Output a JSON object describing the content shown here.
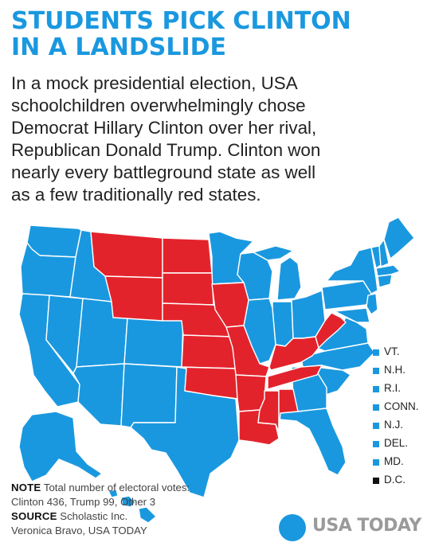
{
  "headline": {
    "line1": "STUDENTS PICK CLINTON",
    "line2": "IN A LANDSLIDE"
  },
  "dek": {
    "lines": [
      "In a mock presidential election, USA",
      "schoolchildren overwhelmingly chose",
      "Democrat Hillary Clinton over her rival,",
      "Republican Donald Trump. Clinton won",
      "nearly every battleground state as well",
      "as a few traditionally red states."
    ]
  },
  "colors": {
    "clinton": "#1a98df",
    "trump": "#e3232c",
    "other": "#111111",
    "headline": "#1a98df"
  },
  "map": {
    "trump_states": [
      "Montana",
      "North Dakota",
      "South Dakota",
      "Wyoming",
      "Nebraska",
      "Kansas",
      "Oklahoma",
      "Iowa",
      "Missouri",
      "Arkansas",
      "Louisiana",
      "Mississippi",
      "Alabama",
      "Tennessee",
      "Kentucky",
      "West Virginia"
    ],
    "clinton_states": [
      "Washington",
      "Oregon",
      "California",
      "Nevada",
      "Idaho",
      "Utah",
      "Arizona",
      "Colorado",
      "New Mexico",
      "Texas",
      "Minnesota",
      "Wisconsin",
      "Illinois",
      "Michigan",
      "Indiana",
      "Ohio",
      "Pennsylvania",
      "New York",
      "Maine",
      "Vermont",
      "New Hampshire",
      "Massachusetts",
      "Rhode Island",
      "Connecticut",
      "New Jersey",
      "Delaware",
      "Maryland",
      "Virginia",
      "North Carolina",
      "South Carolina",
      "Georgia",
      "Florida",
      "Alaska",
      "Hawaii"
    ],
    "other": [
      "D.C."
    ]
  },
  "legend": [
    {
      "label": "VT.",
      "party": "clinton"
    },
    {
      "label": "N.H.",
      "party": "clinton"
    },
    {
      "label": "R.I.",
      "party": "clinton"
    },
    {
      "label": "CONN.",
      "party": "clinton"
    },
    {
      "label": "N.J.",
      "party": "clinton"
    },
    {
      "label": "DEL.",
      "party": "clinton"
    },
    {
      "label": "MD.",
      "party": "clinton"
    },
    {
      "label": "D.C.",
      "party": "other"
    }
  ],
  "footer": {
    "note_label": "NOTE",
    "note_text": " Total number of electoral votes:",
    "note_line2": "Clinton 436, Trump 99, Other 3",
    "source_label": "SOURCE",
    "source_text": " Scholastic Inc.",
    "credit": "Veronica Bravo, USA TODAY"
  },
  "logo": {
    "text": "USA TODAY"
  }
}
